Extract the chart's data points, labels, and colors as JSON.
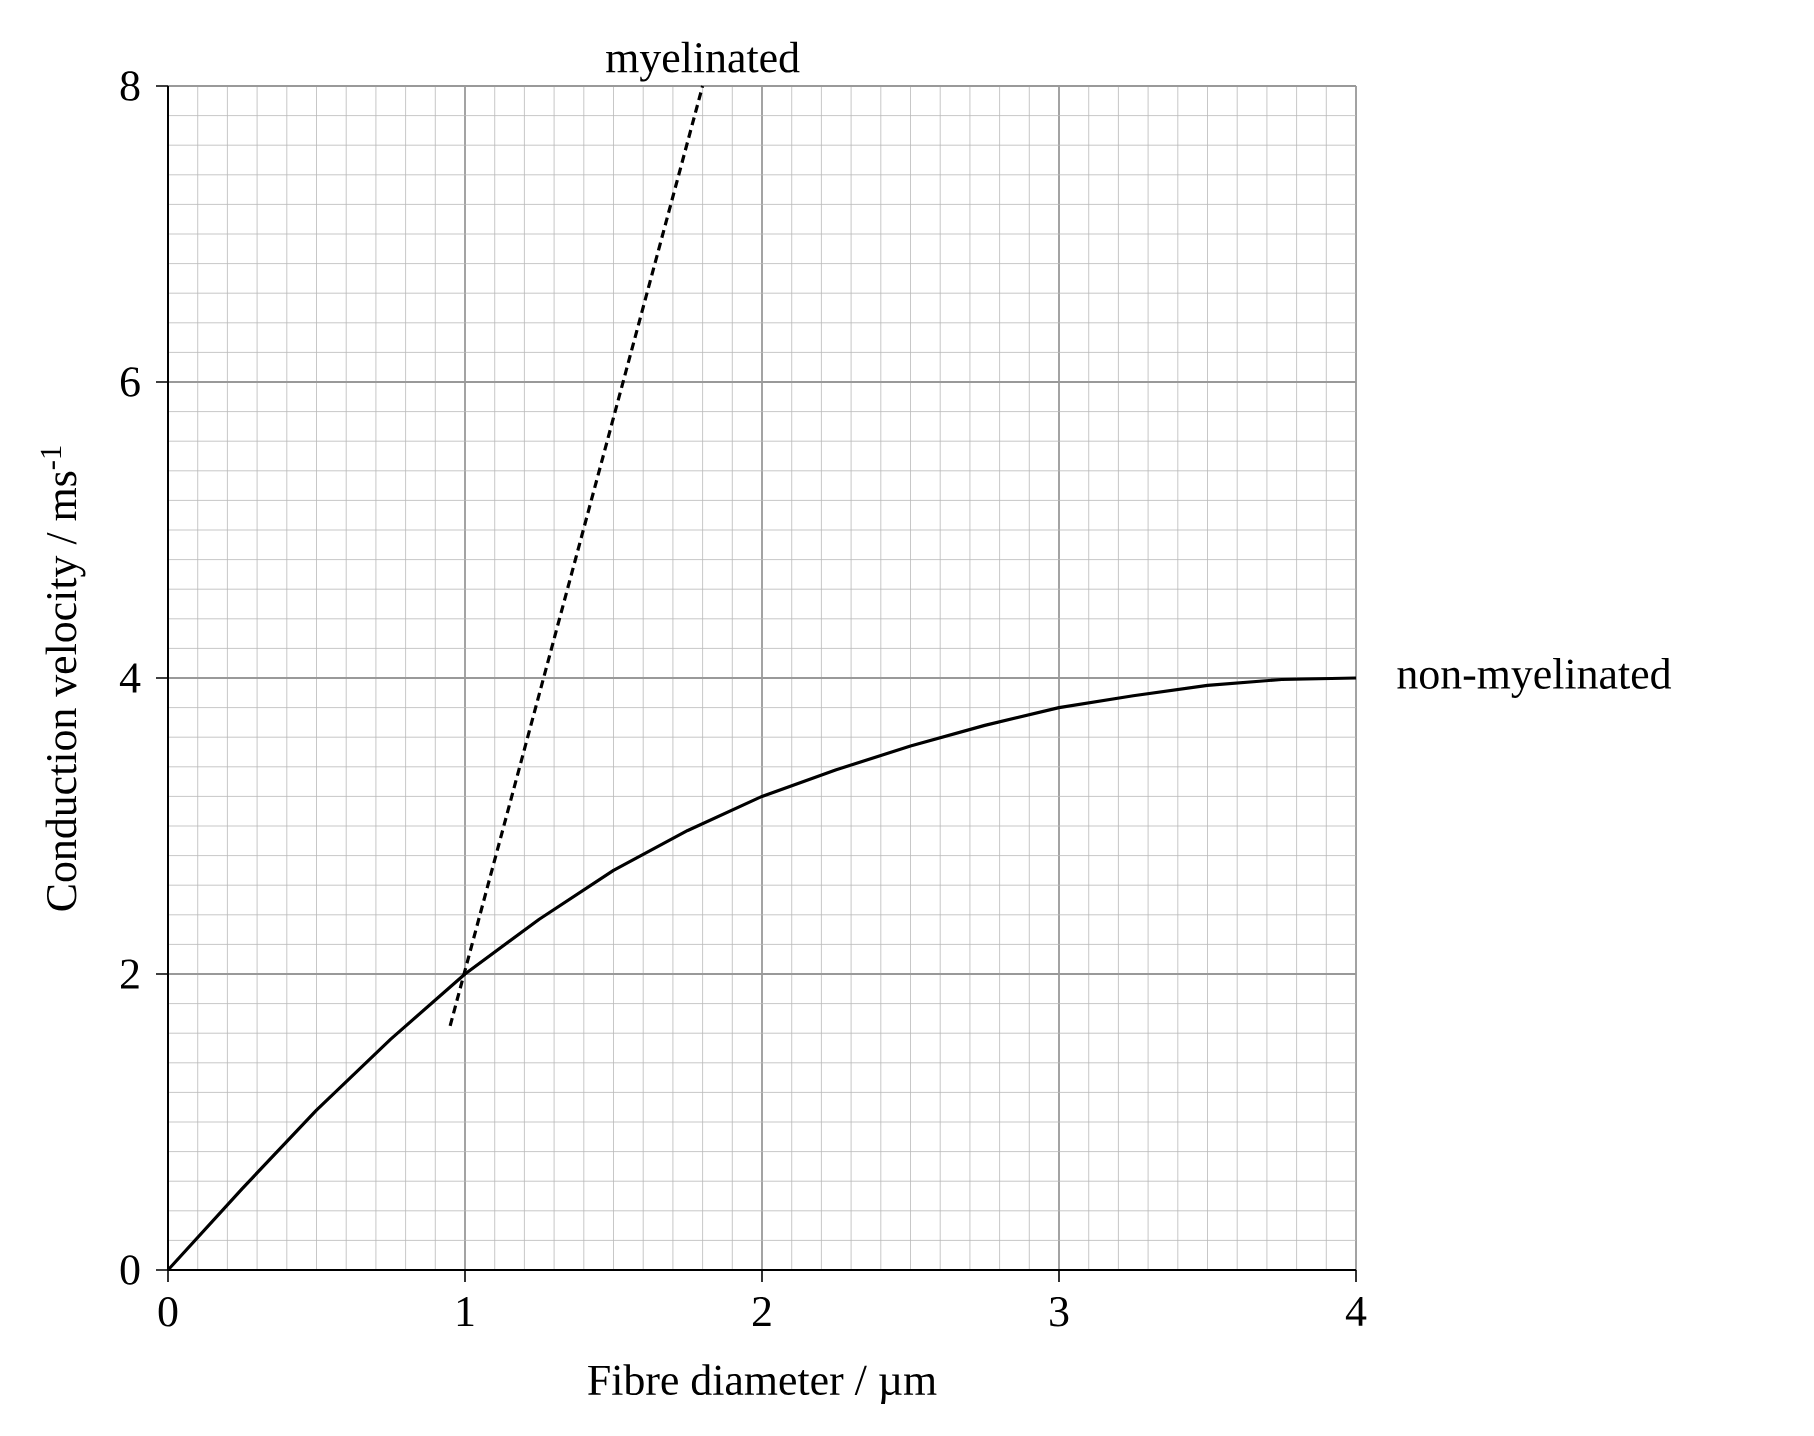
{
  "chart_data": {
    "type": "line",
    "xlabel": "Fibre diameter / µm",
    "ylabel": "Conduction velocity / ms$^{-1}$",
    "xlim": [
      0,
      4
    ],
    "ylim": [
      0,
      8
    ],
    "xticks": [
      0,
      1,
      2,
      3,
      4
    ],
    "yticks": [
      0,
      2,
      4,
      6,
      8
    ],
    "grid": true,
    "marker": "none",
    "series": [
      {
        "name": "myelinated",
        "color": "#000000",
        "line_style": "dashed",
        "x": [
          0.95,
          1.8
        ],
        "values": [
          1.65,
          8.0
        ]
      },
      {
        "name": "non-myelinated",
        "color": "#000000",
        "line_style": "solid",
        "x": [
          0,
          0.25,
          0.5,
          0.75,
          1,
          1.25,
          1.5,
          1.75,
          2,
          2.25,
          2.5,
          2.75,
          3,
          3.25,
          3.5,
          3.75,
          4
        ],
        "values": [
          0,
          0.55,
          1.08,
          1.56,
          2.0,
          2.37,
          2.7,
          2.97,
          3.2,
          3.38,
          3.54,
          3.68,
          3.8,
          3.88,
          3.95,
          3.99,
          4.0
        ]
      }
    ]
  }
}
